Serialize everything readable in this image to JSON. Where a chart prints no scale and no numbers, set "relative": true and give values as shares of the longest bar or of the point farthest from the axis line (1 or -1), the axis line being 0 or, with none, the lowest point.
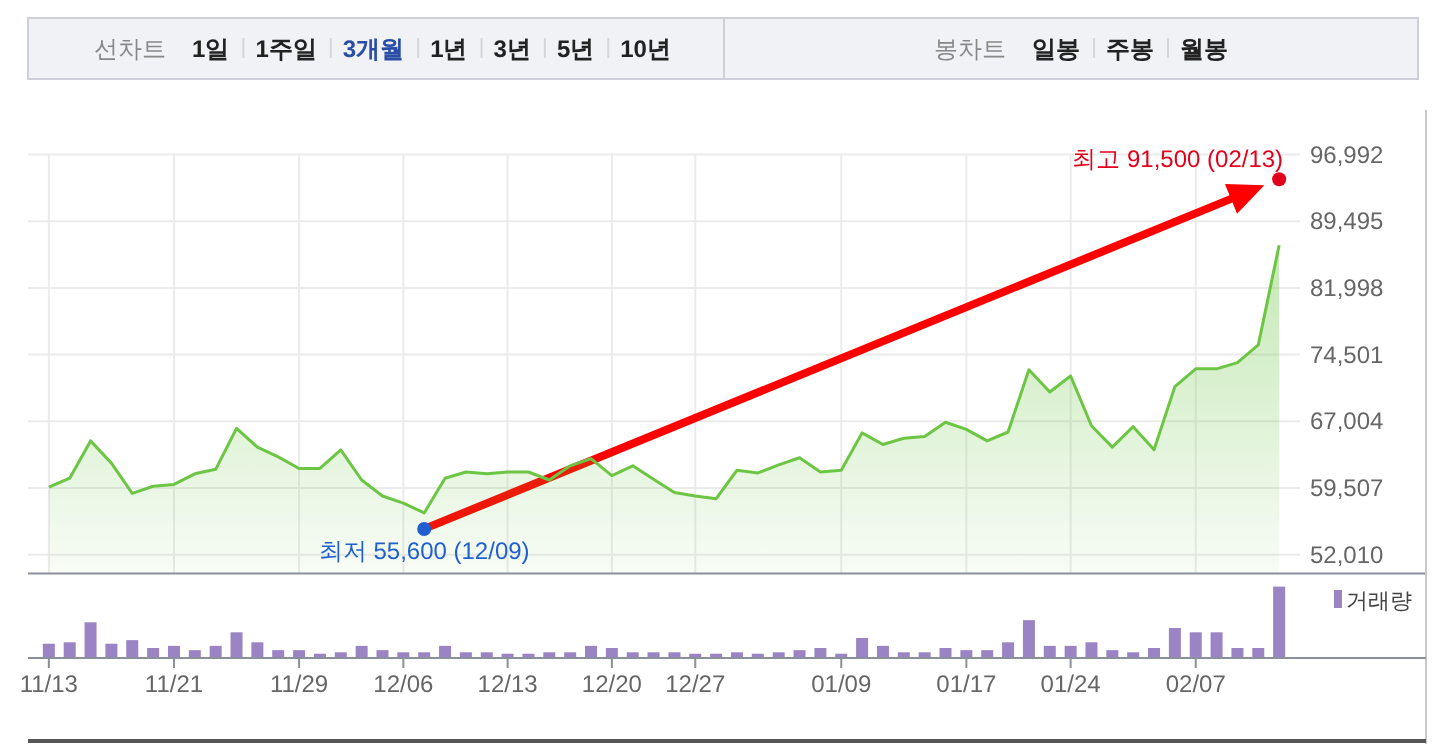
{
  "chart_data": [
    {
      "type": "other",
      "annotations": [
        "선차트",
        "1일",
        "1주일",
        "3개월",
        "1년",
        "3년",
        "5년",
        "10년"
      ],
      "colors": [
        "#888888",
        "#222222",
        "#222222",
        "#2a4ea6",
        "#222222",
        "#222222",
        "#222222",
        "#222222"
      ]
    },
    {
      "type": "other",
      "annotations": [
        "봉차트",
        "일봉",
        "주봉",
        "월봉"
      ],
      "colors": [
        "#888888",
        "#222222",
        "#222222",
        "#222222"
      ]
    },
    {
      "type": "area",
      "color": "#6cc644",
      "categories": [
        "11/13",
        null,
        null,
        null,
        null,
        null,
        "11/21",
        null,
        null,
        null,
        null,
        null,
        "11/29",
        null,
        null,
        null,
        null,
        "12/06",
        null,
        null,
        null,
        null,
        "12/13",
        null,
        null,
        null,
        null,
        "12/20",
        null,
        null,
        null,
        "12/27",
        null,
        null,
        null,
        null,
        null,
        null,
        "01/09",
        null,
        null,
        null,
        null,
        null,
        "01/17",
        null,
        null,
        null,
        null,
        "01/24",
        null,
        null,
        null,
        null,
        null,
        "02/07",
        null,
        null,
        null,
        null
      ],
      "values": [
        59600,
        60600,
        64800,
        62300,
        58900,
        59700,
        59900,
        61100,
        61600,
        66200,
        64100,
        63000,
        61700,
        61700,
        63800,
        60400,
        58600,
        57800,
        56700,
        60600,
        61300,
        61100,
        61300,
        61300,
        60400,
        62000,
        62800,
        60900,
        62000,
        60500,
        59000,
        58600,
        58300,
        61500,
        61200,
        62100,
        62900,
        61300,
        61500,
        65700,
        64400,
        65100,
        65300,
        66900,
        66100,
        64800,
        65800,
        72800,
        70300,
        72100,
        66500,
        64100,
        66400,
        63800,
        70900,
        72900,
        72900,
        73600,
        75600,
        86800
      ],
      "ylim": [
        49900,
        96992
      ],
      "yticks": [
        {
          "value": 52010,
          "label": "52,010"
        },
        {
          "value": 59507,
          "label": "59,507"
        },
        {
          "value": 67004,
          "label": "67,004"
        },
        {
          "value": 74501,
          "label": "74,501"
        },
        {
          "value": 81998,
          "label": "81,998"
        },
        {
          "value": 89495,
          "label": "89,495"
        },
        {
          "value": 96992,
          "label": "96,992"
        }
      ],
      "grid": true,
      "annotations": [
        "최고 91,500 (02/13)",
        "최저 55,600 (12/09)"
      ]
    },
    {
      "type": "bar",
      "relative": true,
      "legend": "top right",
      "categories": [
        null,
        null,
        null,
        null,
        null,
        null,
        null,
        null,
        null,
        null,
        null,
        null,
        null,
        null,
        null,
        null,
        null,
        null,
        null,
        null,
        null,
        null,
        null,
        null,
        null,
        null,
        null,
        null,
        null,
        null,
        null,
        null,
        null,
        null,
        null,
        null,
        null,
        null,
        null,
        null,
        null,
        null,
        null,
        null,
        null,
        null,
        null,
        null,
        null,
        null,
        null,
        null,
        null,
        null,
        null,
        null,
        null,
        null,
        null,
        null
      ],
      "series": [
        {
          "name": "거래량",
          "color": "#9b84c4",
          "values": [
            0.2,
            0.22,
            0.5,
            0.2,
            0.25,
            0.14,
            0.17,
            0.11,
            0.17,
            0.36,
            0.22,
            0.11,
            0.11,
            0.06,
            0.08,
            0.17,
            0.11,
            0.08,
            0.08,
            0.17,
            0.08,
            0.08,
            0.06,
            0.06,
            0.08,
            0.08,
            0.17,
            0.14,
            0.08,
            0.08,
            0.08,
            0.06,
            0.06,
            0.08,
            0.06,
            0.08,
            0.11,
            0.14,
            0.06,
            0.28,
            0.17,
            0.08,
            0.08,
            0.14,
            0.11,
            0.11,
            0.22,
            0.53,
            0.17,
            0.17,
            0.22,
            0.11,
            0.08,
            0.14,
            0.42,
            0.36,
            0.36,
            0.14,
            0.14,
            1
          ]
        }
      ]
    }
  ]
}
